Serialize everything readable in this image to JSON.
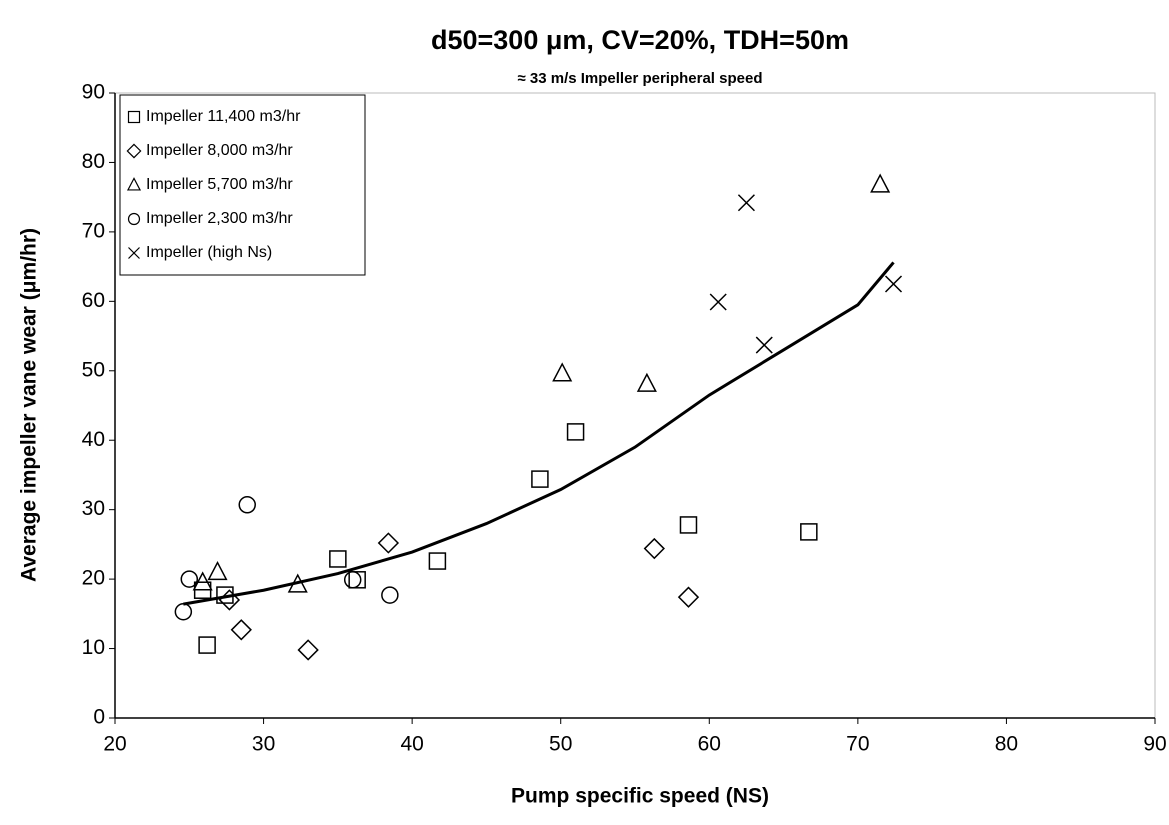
{
  "chart_data": {
    "type": "scatter",
    "title": "d50=300 μm, CV=20%, TDH=50m",
    "subtitle": "≈ 33 m/s Impeller peripheral speed",
    "x_label": "Pump specific speed (NS)",
    "y_label": "Average impeller vane wear (μm/hr)",
    "xlim": [
      20,
      90
    ],
    "ylim": [
      0,
      90
    ],
    "xticks": [
      20,
      30,
      40,
      50,
      60,
      70,
      80,
      90
    ],
    "yticks": [
      0,
      10,
      20,
      30,
      40,
      50,
      60,
      70,
      80,
      90
    ],
    "grid": false,
    "legend": "top-left",
    "series": [
      {
        "name": "Impeller 11,400 m3/hr",
        "marker": "square",
        "color": "#000000",
        "x": [
          25.9,
          26.2,
          27.4,
          35.0,
          36.3,
          41.7,
          48.6,
          51.0,
          58.6,
          66.7
        ],
        "values": [
          18.4,
          10.5,
          17.7,
          22.9,
          19.9,
          22.6,
          34.4,
          41.2,
          27.8,
          26.8
        ]
      },
      {
        "name": "Impeller 8,000 m3/hr",
        "marker": "diamond",
        "color": "#000000",
        "x": [
          27.7,
          28.5,
          33.0,
          38.4,
          56.3,
          58.6
        ],
        "values": [
          17.0,
          12.7,
          9.8,
          25.2,
          24.4,
          17.4
        ]
      },
      {
        "name": "Impeller 5,700 m3/hr",
        "marker": "triangle",
        "color": "#000000",
        "x": [
          25.9,
          26.9,
          32.3,
          50.1,
          55.8,
          71.5
        ],
        "values": [
          19.5,
          21.0,
          19.2,
          49.6,
          48.1,
          76.8
        ]
      },
      {
        "name": "Impeller 2,300 m3/hr",
        "marker": "circle",
        "color": "#000000",
        "x": [
          24.6,
          25.0,
          28.9,
          36.0,
          38.5
        ],
        "values": [
          15.3,
          20.0,
          30.7,
          19.9,
          17.7
        ]
      },
      {
        "name": "Impeller (high Ns)",
        "marker": "x",
        "color": "#000000",
        "x": [
          62.5,
          60.6,
          63.7,
          72.4
        ],
        "values": [
          74.2,
          59.9,
          53.7,
          62.5
        ]
      }
    ],
    "trendline": {
      "color": "#000000",
      "x": [
        24.6,
        30,
        35,
        40,
        45,
        50,
        55,
        60,
        65,
        70,
        72.4
      ],
      "values": [
        16.4,
        18.4,
        20.8,
        23.9,
        28.0,
        32.9,
        39.0,
        46.5,
        53.0,
        59.5,
        65.6
      ]
    }
  }
}
